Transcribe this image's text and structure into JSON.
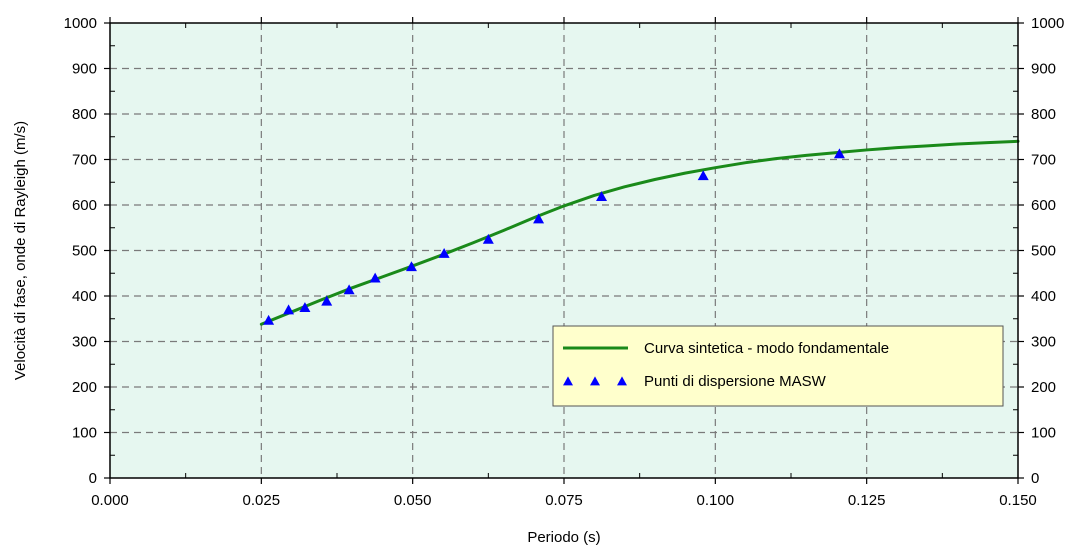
{
  "chart_data": {
    "type": "line",
    "title": "",
    "xlabel": "Periodo (s)",
    "ylabel": "Velocità di fase, onde di Rayleigh (m/s)",
    "xlim": [
      0,
      0.15
    ],
    "ylim": [
      0,
      1000
    ],
    "x_ticks": [
      "0.000",
      "0.025",
      "0.050",
      "0.075",
      "0.100",
      "0.125",
      "0.150"
    ],
    "y_ticks": [
      "0",
      "100",
      "200",
      "300",
      "400",
      "500",
      "600",
      "700",
      "800",
      "900",
      "1000"
    ],
    "grid": true,
    "legend_position": "bottom-right",
    "plot_background": "#e6f7f0",
    "legend_background": "#ffffcc",
    "series": [
      {
        "name": "Curva sintetica - modo fondamentale",
        "type": "line",
        "color": "#1a8a1a",
        "x": [
          0.025,
          0.03,
          0.035,
          0.04,
          0.045,
          0.05,
          0.055,
          0.06,
          0.065,
          0.07,
          0.075,
          0.08,
          0.085,
          0.09,
          0.095,
          0.1,
          0.105,
          0.11,
          0.115,
          0.12,
          0.125,
          0.13,
          0.135,
          0.14,
          0.145,
          0.15
        ],
        "y": [
          338,
          365,
          392,
          418,
          442,
          466,
          491,
          517,
          544,
          572,
          598,
          621,
          640,
          656,
          670,
          682,
          693,
          702,
          709,
          715,
          721,
          726,
          730,
          734,
          737,
          740
        ]
      },
      {
        "name": "Punti di dispersione MASW",
        "type": "scatter",
        "color": "#0000ff",
        "marker": "triangle",
        "x": [
          0.0262,
          0.0295,
          0.0322,
          0.0358,
          0.0395,
          0.0438,
          0.0498,
          0.0552,
          0.0625,
          0.0708,
          0.0812,
          0.098,
          0.1205
        ],
        "y": [
          345,
          368,
          373,
          387,
          412,
          438,
          463,
          492,
          523,
          568,
          617,
          663,
          711
        ]
      }
    ]
  }
}
